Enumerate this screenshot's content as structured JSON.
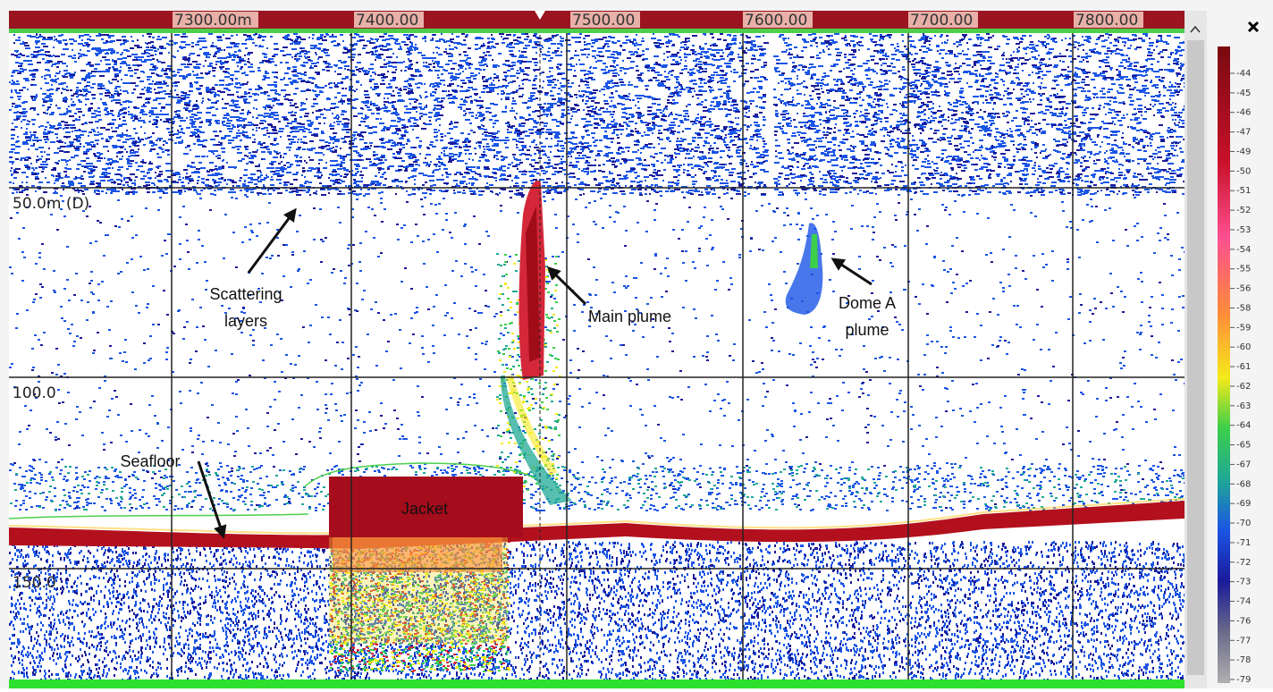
{
  "ruler": {
    "labels": [
      "7300.00m",
      "7400.00",
      "7500.00",
      "7600.00",
      "7700.00",
      "7800.00"
    ]
  },
  "depth_labels": [
    "50.0m (D)",
    "100.0",
    "150.0"
  ],
  "annotations": [
    {
      "lines": [
        "Scattering",
        "layers"
      ]
    },
    {
      "lines": [
        "Main plume"
      ]
    },
    {
      "lines": [
        "Dome A",
        "plume"
      ]
    },
    {
      "lines": [
        "Seafloor"
      ]
    },
    {
      "lines": [
        "Jacket"
      ]
    }
  ],
  "color_scale": {
    "labels": [
      "-44",
      "-45",
      "-46",
      "-47",
      "-49",
      "-50",
      "-51",
      "-52",
      "-53",
      "-54",
      "-55",
      "-56",
      "-58",
      "-59",
      "-60",
      "-61",
      "-62",
      "-63",
      "-64",
      "-65",
      "-67",
      "-68",
      "-69",
      "-70",
      "-71",
      "-72",
      "-73",
      "-74",
      "-76",
      "-77",
      "-78",
      "-79"
    ]
  }
}
